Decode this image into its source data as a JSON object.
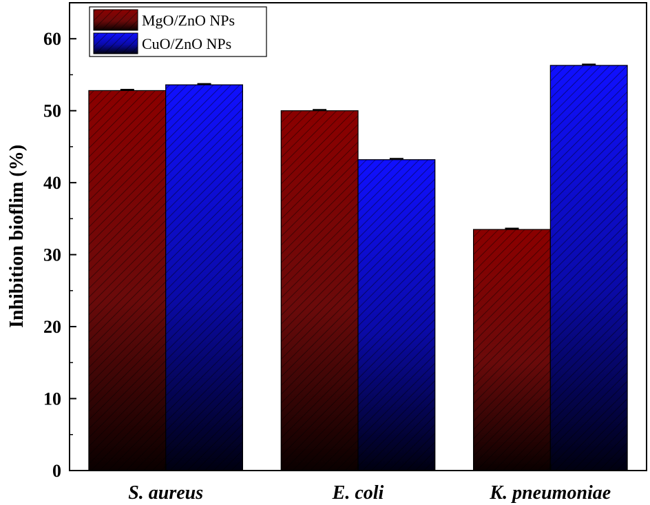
{
  "chart_data": {
    "type": "bar",
    "categories": [
      "S. aureus",
      "E. coli",
      "K. pneumoniae"
    ],
    "series": [
      {
        "name": "MgO/ZnO NPs",
        "values": [
          52.8,
          50.0,
          33.5
        ],
        "color": "#8b0000"
      },
      {
        "name": "CuO/ZnO NPs",
        "values": [
          53.6,
          43.2,
          56.3
        ],
        "color": "#1010ff"
      }
    ],
    "ylabel": "Inhibition bioflim (%)",
    "xlabel": "",
    "ylim": [
      0,
      65
    ],
    "yticks": [
      0,
      10,
      20,
      30,
      40,
      50,
      60
    ],
    "legend": "top-left",
    "grid": false,
    "pattern": "diagonal-hatch"
  }
}
